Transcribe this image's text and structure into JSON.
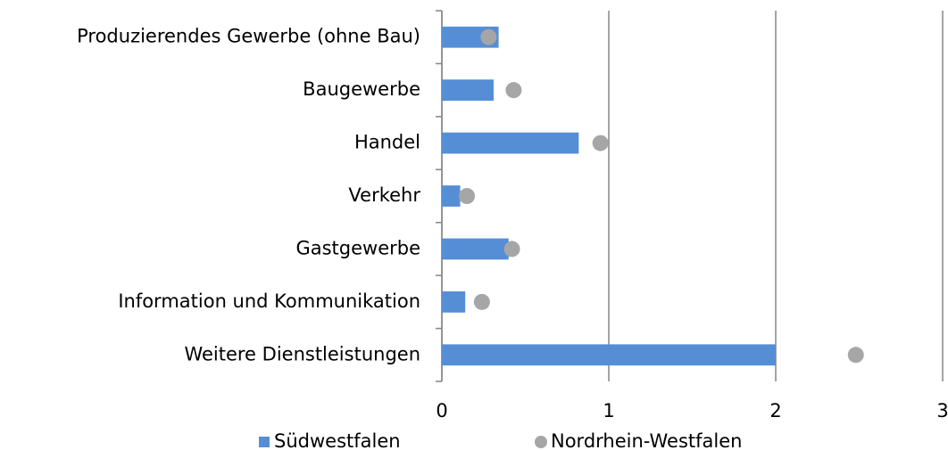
{
  "chart_data": {
    "type": "bar",
    "orientation": "horizontal",
    "categories": [
      "Produzierendes Gewerbe (ohne Bau)",
      "Baugewerbe",
      "Handel",
      "Verkehr",
      "Gastgewerbe",
      "Information und Kommunikation",
      "Weitere Dienstleistungen"
    ],
    "series": [
      {
        "name": "Südwestfalen",
        "color": "#558ed5",
        "mark": "bar",
        "values": [
          0.34,
          0.31,
          0.82,
          0.11,
          0.4,
          0.14,
          2.0
        ]
      },
      {
        "name": "Nordrhein-Westfalen",
        "color": "#a6a6a6",
        "mark": "dot",
        "values": [
          0.28,
          0.43,
          0.95,
          0.15,
          0.42,
          0.24,
          2.48
        ]
      }
    ],
    "xlim": [
      0,
      3
    ],
    "xticks": [
      0,
      1,
      2,
      3
    ],
    "grid": true,
    "legend": "bottom"
  }
}
